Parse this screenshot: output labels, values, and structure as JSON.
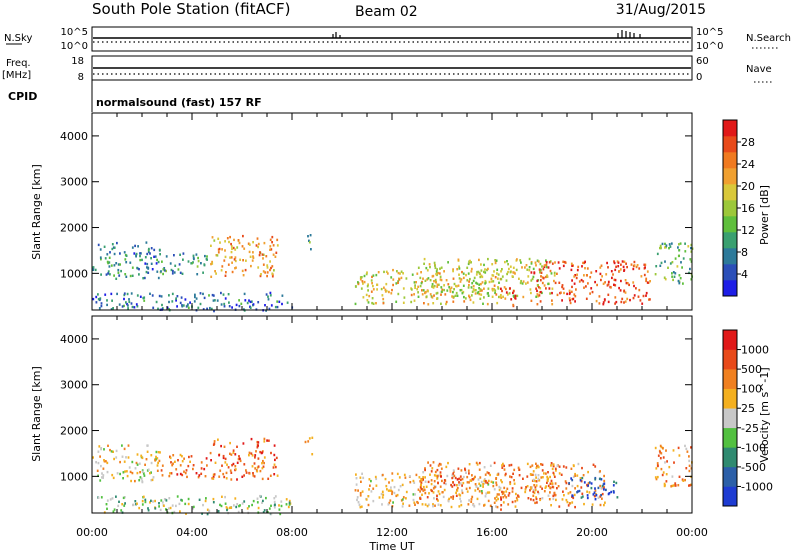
{
  "header": {
    "title": "South Pole Station (fitACF)",
    "beam": "Beam 02",
    "date": "31/Aug/2015"
  },
  "top_panels": {
    "nsky_label": "N.Sky",
    "nsky_ticks": [
      "10^5",
      "10^0"
    ],
    "nsearch_label": "N.Search",
    "nsearch_ticks": [
      "10^5",
      "10^0"
    ],
    "freq_label": "Freq.",
    "freq_unit": "[MHz]",
    "freq_ticks": [
      "18",
      "8"
    ],
    "nave_label": "Nave",
    "nave_ticks": [
      "60",
      "0"
    ],
    "cpid_label": "CPID",
    "cpid_text": "normalsound (fast) 157 RF"
  },
  "chart_data": [
    {
      "type": "heatmap",
      "name": "power",
      "title": "",
      "xlabel": "",
      "ylabel": "Slant Range [km]",
      "xlim": [
        "00:00",
        "24:00"
      ],
      "ylim": [
        200,
        4500
      ],
      "y_ticks": [
        1000,
        2000,
        3000,
        4000
      ],
      "colorbar": {
        "label": "Power [dB]",
        "range": [
          0,
          32
        ],
        "ticks": [
          "4",
          "8",
          "12",
          "16",
          "20",
          "24",
          "28"
        ],
        "colors": [
          "#1e1ee6",
          "#2b4fb8",
          "#2d7a9a",
          "#3aa070",
          "#5fbf3c",
          "#9cc83a",
          "#d9c83a",
          "#f0a030",
          "#f07a20",
          "#e84a1a",
          "#e01818"
        ]
      },
      "echo_regions": [
        {
          "t_start_hr": 0.0,
          "t_end_hr": 2.7,
          "range_min_km": 900,
          "range_max_km": 1700,
          "level": 0.25
        },
        {
          "t_start_hr": 2.7,
          "t_end_hr": 4.6,
          "range_min_km": 1000,
          "range_max_km": 1500,
          "level": 0.3
        },
        {
          "t_start_hr": 4.7,
          "t_end_hr": 7.4,
          "range_min_km": 950,
          "range_max_km": 1850,
          "level": 0.7
        },
        {
          "t_start_hr": 8.5,
          "t_end_hr": 8.8,
          "range_min_km": 1500,
          "range_max_km": 1900,
          "level": 0.35
        },
        {
          "t_start_hr": 10.5,
          "t_end_hr": 16.5,
          "range_min_km": 350,
          "range_max_km": 1100,
          "level": 0.6
        },
        {
          "t_start_hr": 13.0,
          "t_end_hr": 18.5,
          "range_min_km": 500,
          "range_max_km": 1350,
          "level": 0.55
        },
        {
          "t_start_hr": 16.3,
          "t_end_hr": 17.0,
          "range_min_km": 300,
          "range_max_km": 700,
          "level": 0.95
        },
        {
          "t_start_hr": 17.5,
          "t_end_hr": 22.3,
          "range_min_km": 350,
          "range_max_km": 1300,
          "level": 0.85
        },
        {
          "t_start_hr": 22.5,
          "t_end_hr": 24.0,
          "range_min_km": 800,
          "range_max_km": 1700,
          "level": 0.4
        },
        {
          "t_start_hr": 0.0,
          "t_end_hr": 8.0,
          "range_min_km": 200,
          "range_max_km": 600,
          "level": 0.2
        }
      ]
    },
    {
      "type": "heatmap",
      "name": "velocity",
      "title": "",
      "xlabel": "Time UT",
      "ylabel": "Slant Range [km]",
      "xlim": [
        "00:00",
        "24:00"
      ],
      "x_ticks": [
        "00:00",
        "04:00",
        "08:00",
        "12:00",
        "16:00",
        "20:00",
        "00:00"
      ],
      "ylim": [
        200,
        4500
      ],
      "y_ticks": [
        1000,
        2000,
        3000,
        4000
      ],
      "colorbar": {
        "label": "Velocity [m s^-1]",
        "ticks": [
          "1000",
          "500",
          "100",
          "25",
          "-25",
          "-100",
          "-500",
          "-1000"
        ],
        "colors": [
          "#1e3cd2",
          "#2b5fa8",
          "#2f8a70",
          "#52c040",
          "#c8c8c8",
          "#f4b020",
          "#f08020",
          "#e84a1a",
          "#e01818"
        ]
      },
      "echo_regions": [
        {
          "t_start_hr": 0.0,
          "t_end_hr": 2.7,
          "range_min_km": 900,
          "range_max_km": 1700,
          "level": 0.55
        },
        {
          "t_start_hr": 2.7,
          "t_end_hr": 4.6,
          "range_min_km": 1000,
          "range_max_km": 1500,
          "level": 0.75
        },
        {
          "t_start_hr": 4.7,
          "t_end_hr": 7.4,
          "range_min_km": 950,
          "range_max_km": 1850,
          "level": 0.78
        },
        {
          "t_start_hr": 8.5,
          "t_end_hr": 8.8,
          "range_min_km": 1500,
          "range_max_km": 1900,
          "level": 0.7
        },
        {
          "t_start_hr": 10.5,
          "t_end_hr": 16.5,
          "range_min_km": 350,
          "range_max_km": 1100,
          "level": 0.6
        },
        {
          "t_start_hr": 13.0,
          "t_end_hr": 18.5,
          "range_min_km": 500,
          "range_max_km": 1350,
          "level": 0.72
        },
        {
          "t_start_hr": 16.3,
          "t_end_hr": 17.0,
          "range_min_km": 300,
          "range_max_km": 700,
          "level": 0.75
        },
        {
          "t_start_hr": 17.5,
          "t_end_hr": 20.5,
          "range_min_km": 350,
          "range_max_km": 1300,
          "level": 0.7
        },
        {
          "t_start_hr": 19.0,
          "t_end_hr": 21.0,
          "range_min_km": 500,
          "range_max_km": 1000,
          "level": 0.1
        },
        {
          "t_start_hr": 22.5,
          "t_end_hr": 24.0,
          "range_min_km": 800,
          "range_max_km": 1700,
          "level": 0.7
        },
        {
          "t_start_hr": 0.0,
          "t_end_hr": 8.0,
          "range_min_km": 200,
          "range_max_km": 600,
          "level": 0.45
        }
      ]
    }
  ]
}
